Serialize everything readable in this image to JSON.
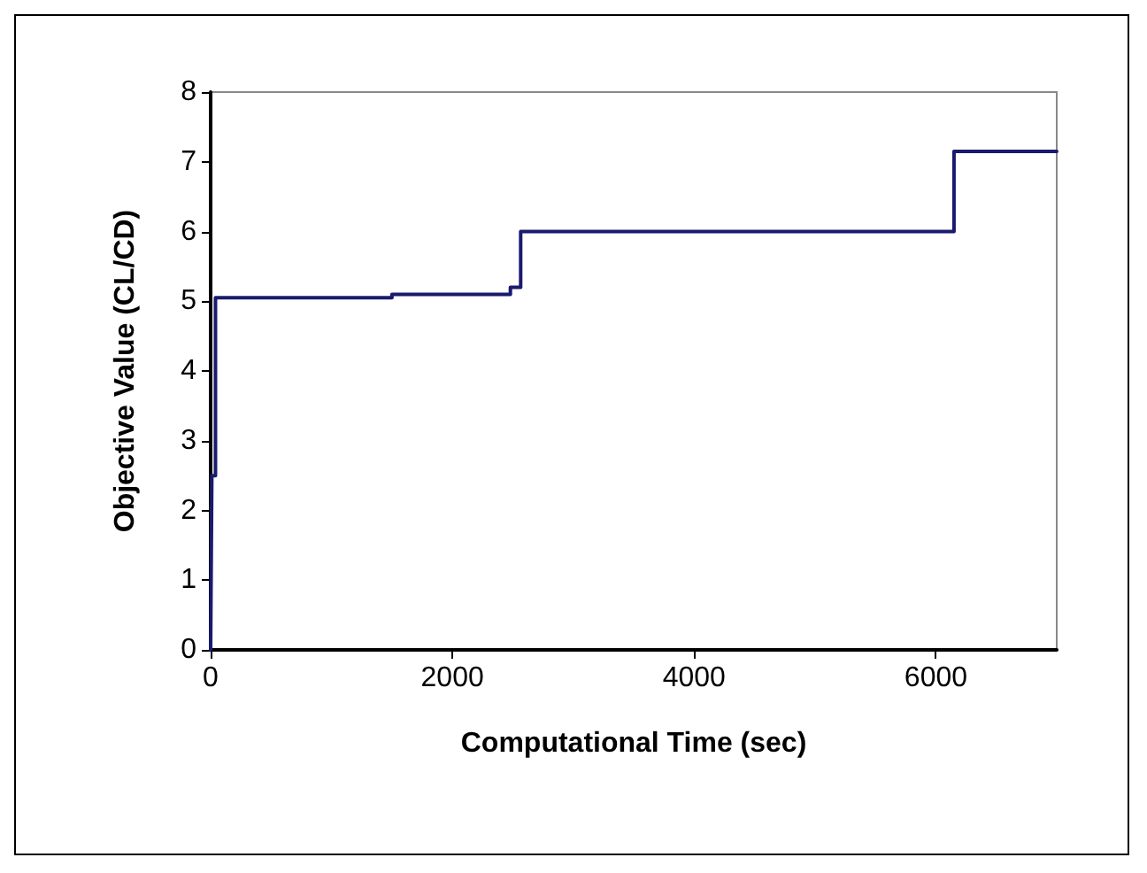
{
  "chart_data": {
    "type": "step",
    "xlabel": "Computational Time (sec)",
    "ylabel": "Objective Value (CL/CD)",
    "x": [
      0,
      10,
      40,
      1500,
      2480,
      2565,
      6150,
      7000
    ],
    "series": [
      {
        "color": "#1a1a6e",
        "values": [
          0,
          2.5,
          5.05,
          5.1,
          5.2,
          6.0,
          7.15,
          7.15
        ]
      }
    ],
    "xlim": [
      0,
      7000
    ],
    "xticks": [
      0,
      2000,
      4000,
      6000
    ],
    "ylim": [
      0,
      8
    ],
    "yticks": [
      0,
      1,
      2,
      3,
      4,
      5,
      6,
      7,
      8
    ],
    "grid": false,
    "marker": "none",
    "line_style": "solid"
  }
}
